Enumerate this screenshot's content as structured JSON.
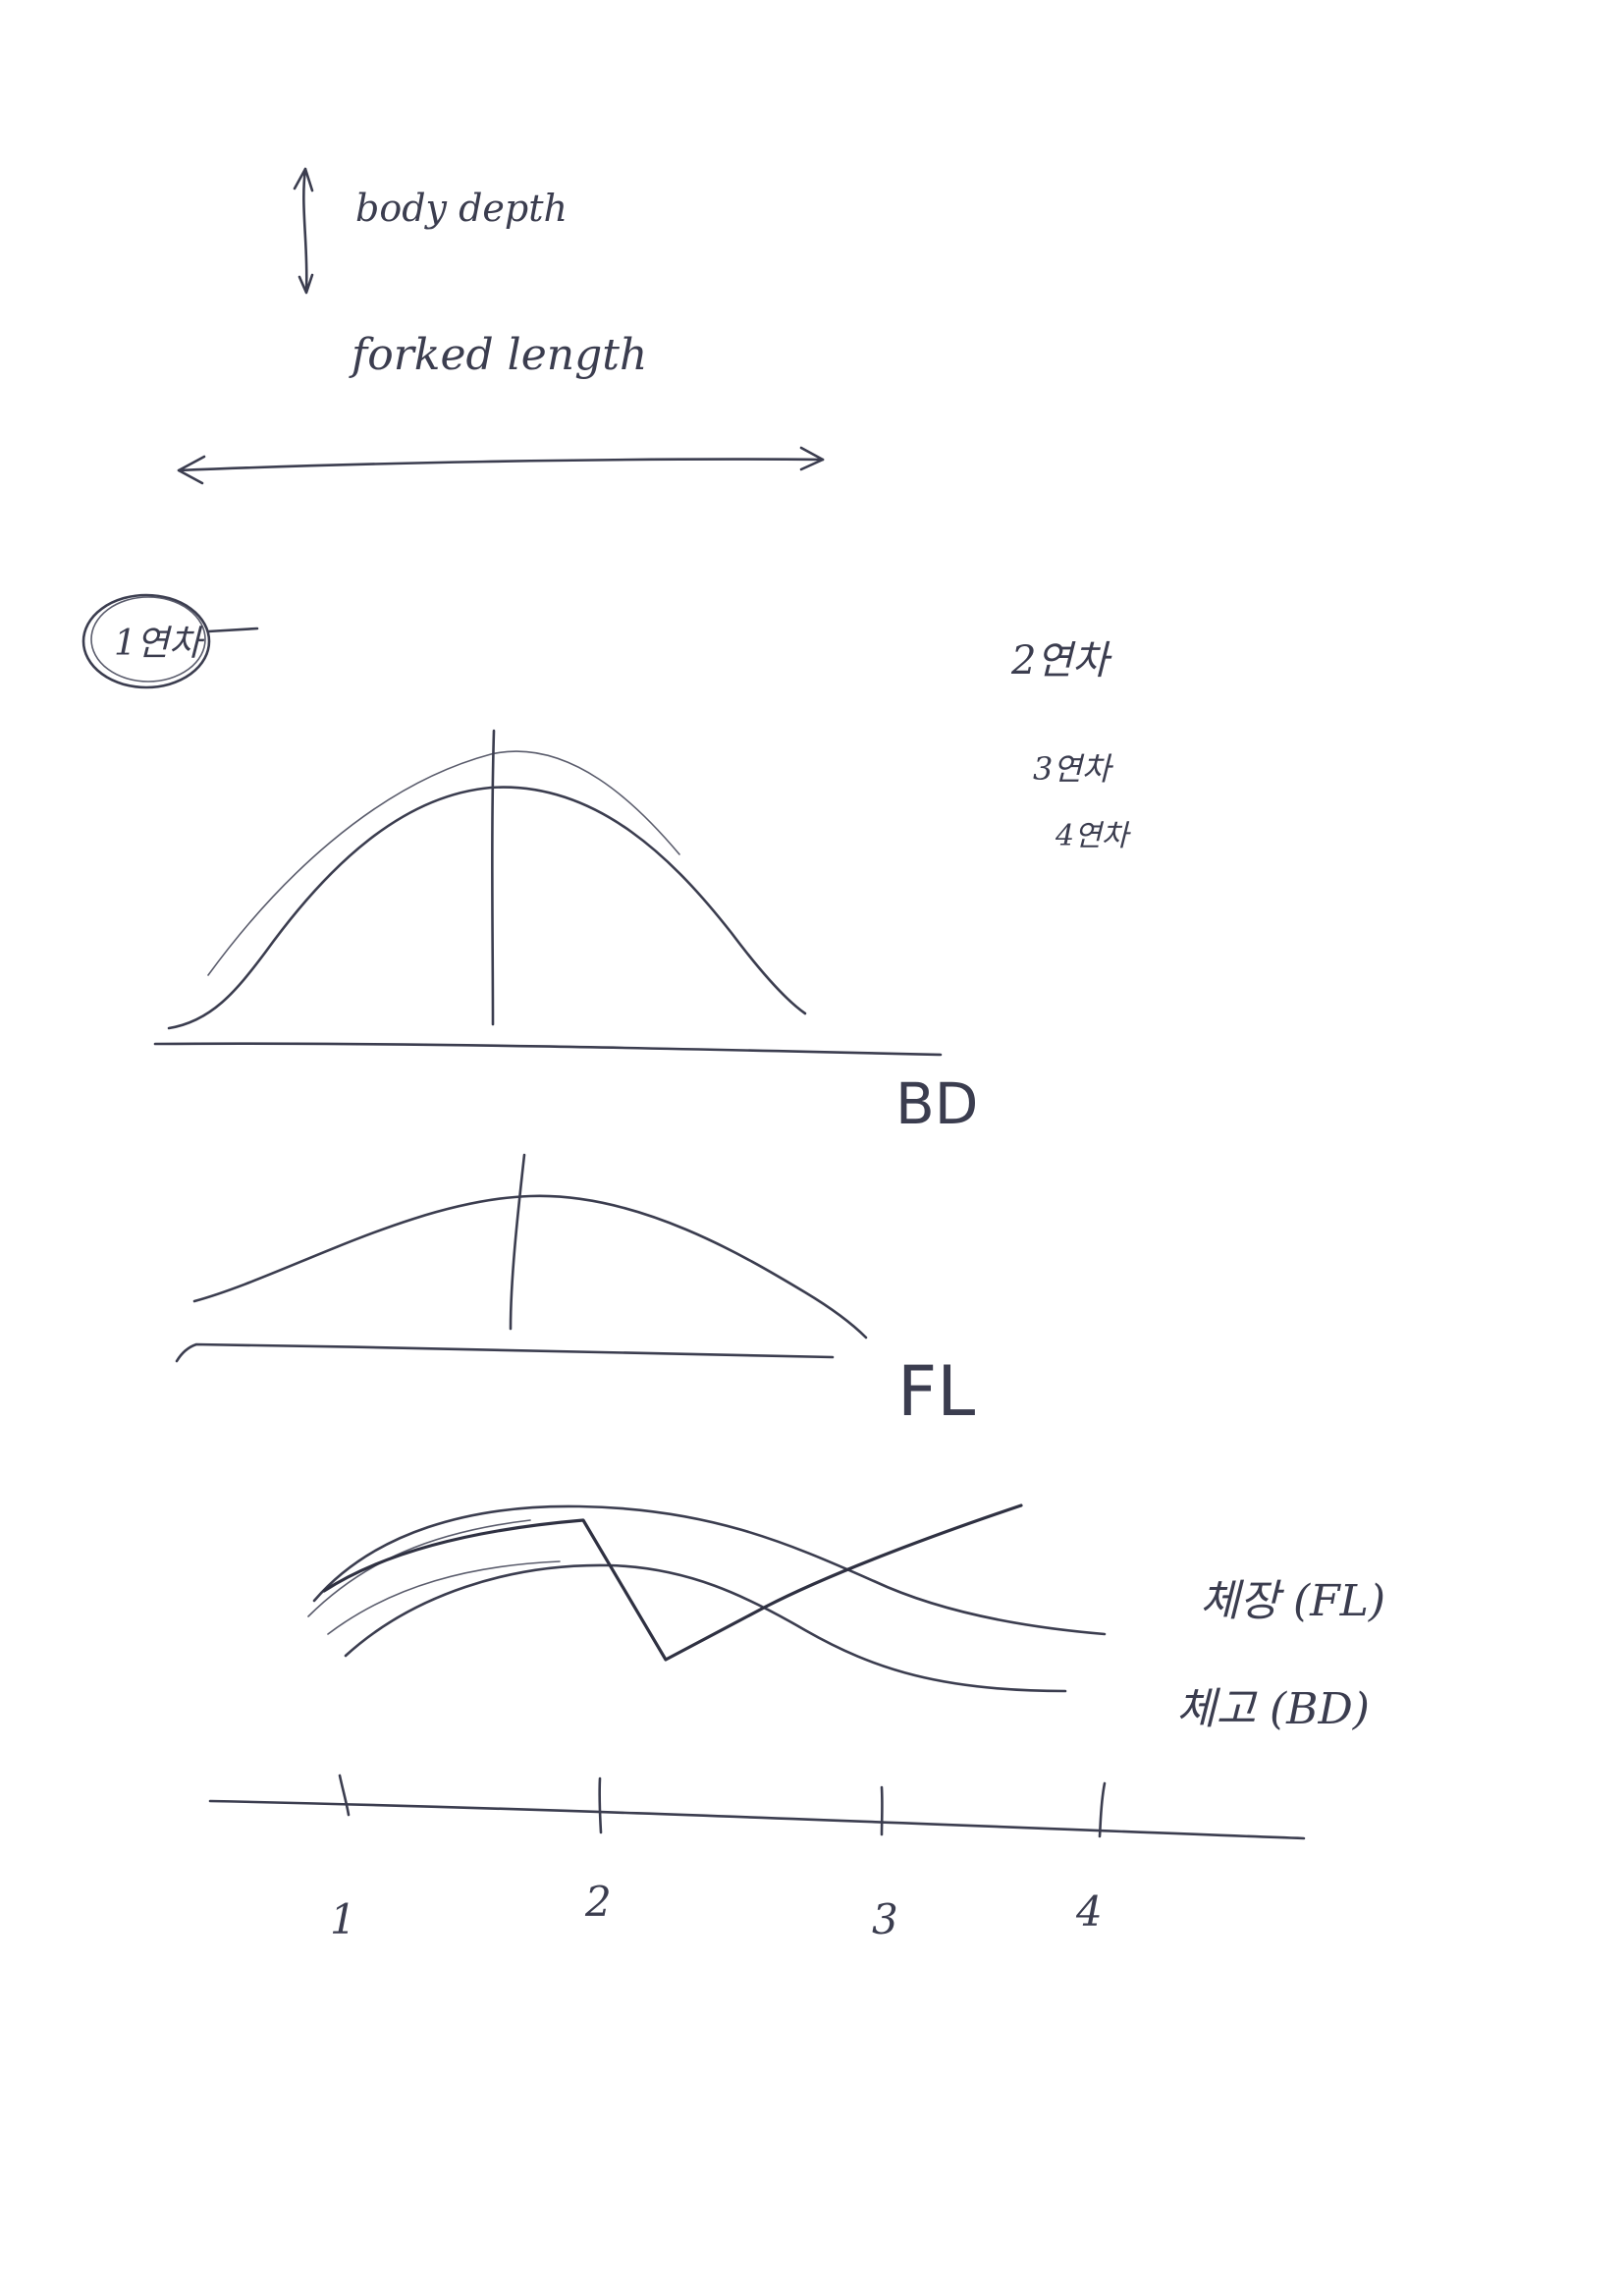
{
  "labels": {
    "body_depth": "body depth",
    "forked_length": "forked length",
    "age_circled": "1연차",
    "age_2": "2연차",
    "age_3": "3연차",
    "age_4": "4연차",
    "bd_axis": "BD",
    "fl_axis": "FL",
    "series_fl": "체장 (FL)",
    "series_bd": "체고 (BD)"
  },
  "ticks": [
    "1",
    "2",
    "3",
    "4"
  ],
  "colors": {
    "ink": "#3b3d4f",
    "paper": "#ffffff"
  }
}
